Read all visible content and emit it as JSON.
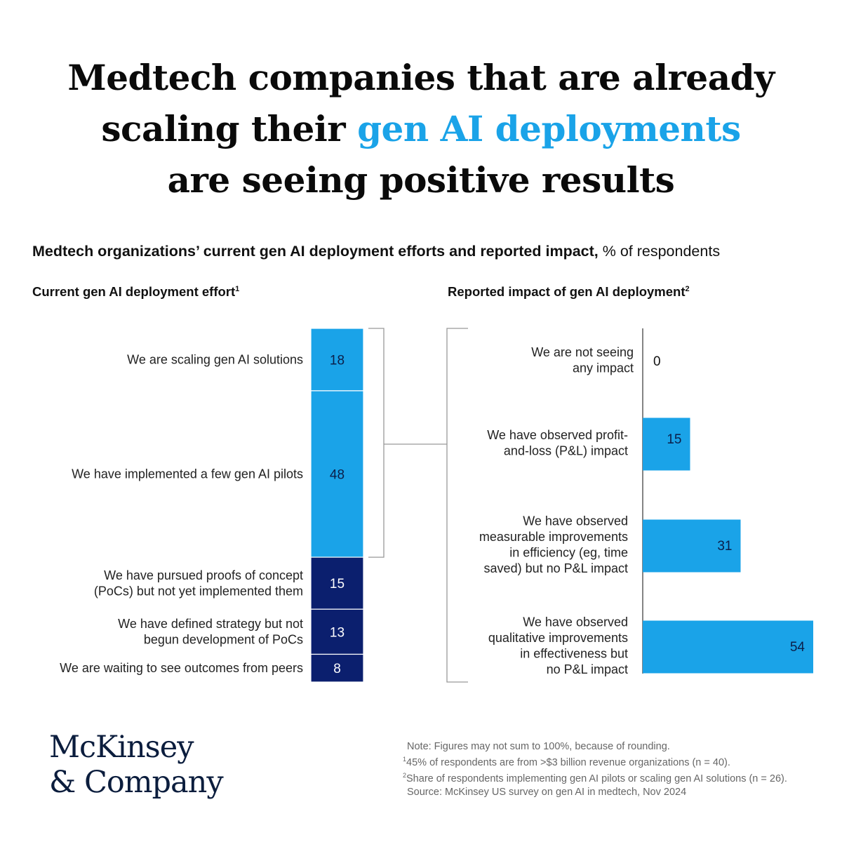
{
  "headline": {
    "line1": "Medtech companies that are already",
    "line2_pre": "scaling their ",
    "line2_highlight": "gen AI deployments",
    "line3": "are seeing positive results"
  },
  "subtitle": {
    "main": "Medtech organizations’ current gen AI deployment efforts and reported impact,",
    "unit": " % of respondents"
  },
  "colors": {
    "light_blue": "#1aa3e8",
    "dark_blue": "#0b1f6e",
    "highlight": "#1aa3e8",
    "bracket": "#999999"
  },
  "chart_data": [
    {
      "type": "stacked-bar",
      "title": "Current gen AI deployment effort",
      "title_footnote": "1",
      "categories": [
        "We are scaling gen AI solutions",
        "We have implemented a few gen AI pilots",
        "We have pursued proofs of concept (PoCs) but not yet implemented them",
        "We have defined strategy but not begun development of PoCs",
        "We are waiting to see outcomes from peers"
      ],
      "label_lines": [
        [
          "We are scaling gen AI solutions"
        ],
        [
          "We have implemented a few gen AI pilots"
        ],
        [
          "We have pursued proofs of concept",
          "(PoCs) but not yet implemented them"
        ],
        [
          "We have defined strategy but not",
          "begun development of PoCs"
        ],
        [
          "We are waiting to see outcomes from peers"
        ]
      ],
      "values": [
        18,
        48,
        15,
        13,
        8
      ],
      "color_groups": [
        "light",
        "light",
        "dark",
        "dark",
        "dark"
      ]
    },
    {
      "type": "bar",
      "orientation": "horizontal",
      "title": "Reported impact of gen AI deployment",
      "title_footnote": "2",
      "categories": [
        "We are not seeing any impact",
        "We have observed profit-and-loss (P&L) impact",
        "We have observed measurable improvements in efficiency (eg, time saved) but no P&L impact",
        "We have observed qualitative improvements in effectiveness but no P&L impact"
      ],
      "label_lines": [
        [
          "We are not seeing",
          "any impact"
        ],
        [
          "We have observed profit-",
          "and-loss (P&L) impact"
        ],
        [
          "We have observed",
          "measurable improvements",
          "in efficiency (eg, time",
          "saved) but no P&L impact"
        ],
        [
          "We have observed",
          "qualitative improvements",
          "in effectiveness but",
          "no P&L impact"
        ]
      ],
      "values": [
        0,
        15,
        31,
        54
      ]
    }
  ],
  "logo": {
    "line1": "McKinsey",
    "line2": "& Company"
  },
  "notes": {
    "note": "Note: Figures may not sum to 100%, because of rounding.",
    "fn1_mark": "1",
    "fn1": "45% of respondents are from >$3 billion revenue organizations (n = 40).",
    "fn2_mark": "2",
    "fn2": "Share of respondents implementing gen AI pilots or scaling gen AI solutions (n = 26).",
    "source": "Source: McKinsey US survey on gen AI in medtech, Nov 2024"
  }
}
